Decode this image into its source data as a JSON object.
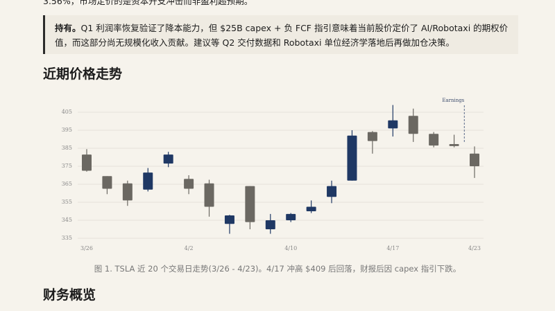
{
  "intro_text": "3.56%，市场定价的是资本开支冲击而非盈利超预期。",
  "callout": {
    "lead": "持有。",
    "body": "Q1 利润率恢复验证了降本能力，但 $25B capex + 负 FCF 指引意味着当前股价定价了 AI/Robotaxi 的期权价值，而这部分尚无规模化收入贡献。建议等 Q2 交付数据和 Robotaxi 单位经济学落地后再做加仓决策。"
  },
  "heading_price": "近期价格走势",
  "chart_data": {
    "type": "candlestick",
    "categories": [
      "3/26",
      null,
      null,
      null,
      null,
      "4/2",
      null,
      null,
      null,
      null,
      "4/10",
      null,
      null,
      null,
      null,
      "4/17",
      null,
      null,
      null,
      "4/23"
    ],
    "open": [
      381.5,
      369.5,
      365.5,
      362,
      376.5,
      368,
      365.5,
      343,
      364,
      340,
      345,
      350,
      358,
      367,
      394,
      396,
      403,
      393,
      387.3,
      382
    ],
    "high": [
      384.5,
      369.5,
      367,
      374,
      383,
      370,
      367.5,
      348,
      364,
      348.5,
      349,
      356,
      367,
      395,
      394.5,
      409,
      407,
      394,
      392.5,
      386
    ],
    "low": [
      372,
      359.5,
      353,
      361,
      374.5,
      359.5,
      347,
      337.5,
      340,
      337.5,
      344,
      349,
      354.5,
      367,
      382,
      391.5,
      388.5,
      385.5,
      385.5,
      368.5
    ],
    "close": [
      372.5,
      362.5,
      356,
      371.5,
      381.5,
      362.5,
      352.5,
      347.7,
      344,
      345,
      348.5,
      352.5,
      364,
      392,
      389,
      400.5,
      393,
      386.5,
      386.2,
      375
    ],
    "up_color": "#1f3864",
    "down_color": "#6b6862",
    "ylim": [
      331,
      411
    ],
    "yticks": [
      335,
      345,
      355,
      365,
      375,
      385,
      395,
      405
    ],
    "grid": true,
    "annotation": "Earnings"
  },
  "caption": "图 1. TSLA 近 20 个交易日走势(3/26 - 4/23)。4/17 冲高 $409 后回落，财报后因 capex 指引下跌。",
  "heading_financial": "财务概览"
}
